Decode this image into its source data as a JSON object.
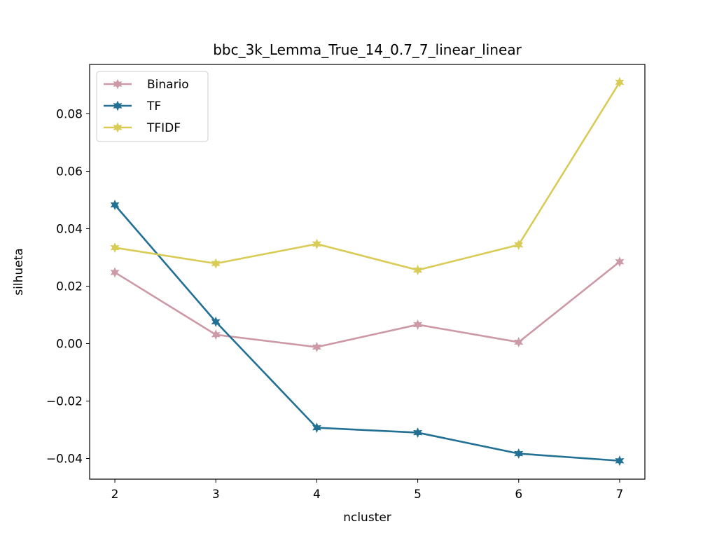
{
  "chart_data": {
    "type": "line",
    "title": "bbc_3k_Lemma_True_14_0.7_7_linear_linear",
    "xlabel": "ncluster",
    "ylabel": "silhueta",
    "x": [
      2,
      3,
      4,
      5,
      6,
      7
    ],
    "xlim": [
      1.75,
      7.25
    ],
    "ylim": [
      -0.0472,
      0.0972
    ],
    "xticks": [
      2,
      3,
      4,
      5,
      6,
      7
    ],
    "yticks": [
      -0.04,
      -0.02,
      0.0,
      0.02,
      0.04,
      0.06,
      0.08
    ],
    "ytick_labels": [
      "−0.04",
      "−0.02",
      "0.00",
      "0.02",
      "0.04",
      "0.06",
      "0.08"
    ],
    "legend_position": "upper-left",
    "grid": false,
    "series": [
      {
        "name": "Binario",
        "color": "#cc9aa6",
        "values": [
          0.0248,
          0.0031,
          -0.0012,
          0.0066,
          0.0005,
          0.0285
        ]
      },
      {
        "name": "TF",
        "color": "#227093",
        "values": [
          0.0483,
          0.0076,
          -0.0293,
          -0.031,
          -0.0383,
          -0.0408
        ]
      },
      {
        "name": "TFIDF",
        "color": "#d8cb56",
        "values": [
          0.0334,
          0.0279,
          0.0347,
          0.0256,
          0.0344,
          0.091
        ]
      }
    ]
  }
}
